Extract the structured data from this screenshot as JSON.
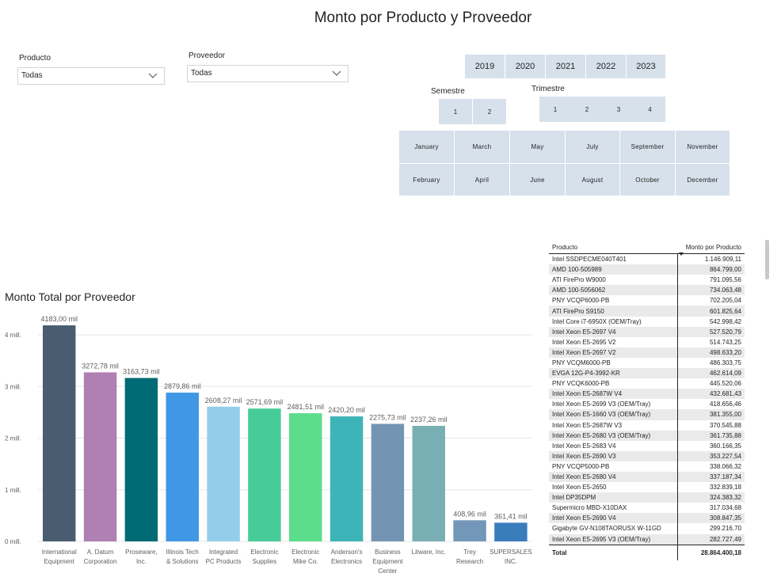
{
  "title": "Monto por Producto y Proveedor",
  "slicers": {
    "producto": {
      "label": "Producto",
      "value": "Todas"
    },
    "proveedor": {
      "label": "Proveedor",
      "value": "Todas"
    }
  },
  "years": [
    "2019",
    "2020",
    "2021",
    "2022",
    "2023"
  ],
  "semestre": {
    "label": "Semestre",
    "items": [
      "1",
      "2"
    ]
  },
  "trimestre": {
    "label": "Trimestre",
    "items": [
      "1",
      "2",
      "3",
      "4"
    ]
  },
  "months_row1": [
    "January",
    "March",
    "May",
    "July",
    "September",
    "November"
  ],
  "months_row2": [
    "February",
    "April",
    "June",
    "August",
    "October",
    "December"
  ],
  "chart_data": {
    "type": "bar",
    "title": "Monto Total por Proveedor",
    "categories": [
      [
        "International",
        "Equipment"
      ],
      [
        "A. Datum",
        "Corporation"
      ],
      [
        "Proseware,",
        "Inc."
      ],
      [
        "Illinois Tech",
        "& Solutions"
      ],
      [
        "Integrated",
        "PC Products"
      ],
      [
        "Electronic",
        "Supplies"
      ],
      [
        "Electronic",
        "Mike Co."
      ],
      [
        "Anderson's",
        "Electronics"
      ],
      [
        "Business",
        "Equipment",
        "Center"
      ],
      [
        "Litware, Inc."
      ],
      [
        "Trey",
        "Research"
      ],
      [
        "SUPERSALES",
        "INC."
      ]
    ],
    "values": [
      4183.0,
      3272.78,
      3163.73,
      2879.86,
      2608.27,
      2571.69,
      2481.51,
      2420.2,
      2275.73,
      2237.26,
      408.96,
      361.41
    ],
    "data_labels": [
      "4183,00 mil",
      "3272,78 mil",
      "3163,73 mil",
      "2879,86 mil",
      "2608,27 mil",
      "2571,69 mil",
      "2481,51 mil",
      "2420,20 mil",
      "2275,73 mil",
      "2237,26 mil",
      "408,96 mil",
      "361,41 mil"
    ],
    "colors": [
      "#4a5d70",
      "#b07fb3",
      "#006b75",
      "#3f97e5",
      "#94cdec",
      "#47cc99",
      "#5cdd8c",
      "#3db5b8",
      "#7395b3",
      "#79afb3",
      "#7397b8",
      "#3a7dbd"
    ],
    "y_ticks": [
      0,
      1000,
      2000,
      3000,
      4000
    ],
    "y_tick_labels": [
      "0 mill.",
      "1 mill.",
      "2 mill.",
      "3 mill.",
      "4 mill."
    ],
    "ylim": [
      0,
      4183
    ],
    "grid": true
  },
  "table": {
    "col1": "Producto",
    "col2": "Monto por Producto",
    "rows": [
      [
        "Intel SSDPECME040T401",
        "1.146.909,11"
      ],
      [
        "AMD 100-505989",
        "864.799,00"
      ],
      [
        "ATI FirePro W9000",
        "791.095,56"
      ],
      [
        "AMD 100-5056062",
        "734.063,48"
      ],
      [
        "PNY VCQP6000-PB",
        "702.205,04"
      ],
      [
        "ATI FirePro S9150",
        "601.825,64"
      ],
      [
        "Intel Core i7-6950X (OEM/Tray)",
        "542.998,42"
      ],
      [
        "Intel Xeon E5-2697 V4",
        "527.520,79"
      ],
      [
        "Intel Xeon E5-2695 V2",
        "514.743,25"
      ],
      [
        "Intel Xeon E5-2697 V2",
        "498.633,20"
      ],
      [
        "PNY VCQM6000-PB",
        "486.303,75"
      ],
      [
        "EVGA 12G-P4-3992-KR",
        "462.614,09"
      ],
      [
        "PNY VCQK6000-PB",
        "445.520,06"
      ],
      [
        "Intel Xeon E5-2687W V4",
        "432.681,43"
      ],
      [
        "Intel Xeon E5-2699 V3 (OEM/Tray)",
        "418.656,46"
      ],
      [
        "Intel Xeon E5-1660 V3 (OEM/Tray)",
        "381.355,00"
      ],
      [
        "Intel Xeon E5-2687W V3",
        "370.545,88"
      ],
      [
        "Intel Xeon E5-2680 V3 (OEM/Tray)",
        "361.735,88"
      ],
      [
        "Intel Xeon E5-2683 V4",
        "360.166,35"
      ],
      [
        "Intel Xeon E5-2690 V3",
        "353.227,54"
      ],
      [
        "PNY VCQP5000-PB",
        "338.066,32"
      ],
      [
        "Intel Xeon E5-2680 V4",
        "337.187,34"
      ],
      [
        "Intel Xeon E5-2650",
        "332.839,18"
      ],
      [
        "Intel DP35DPM",
        "324.383,32"
      ],
      [
        "Supermicro MBD-X10DAX",
        "317.034,68"
      ],
      [
        "Intel Xeon E5-2690 V4",
        "308.847,35"
      ],
      [
        "Gigabyte GV-N108TAORUSX W-11GD",
        "299.216,70"
      ],
      [
        "Intel Xeon E5-2695 V3 (OEM/Tray)",
        "282.727,49"
      ]
    ],
    "total_label": "Total",
    "total_value": "28.864.400,18"
  }
}
